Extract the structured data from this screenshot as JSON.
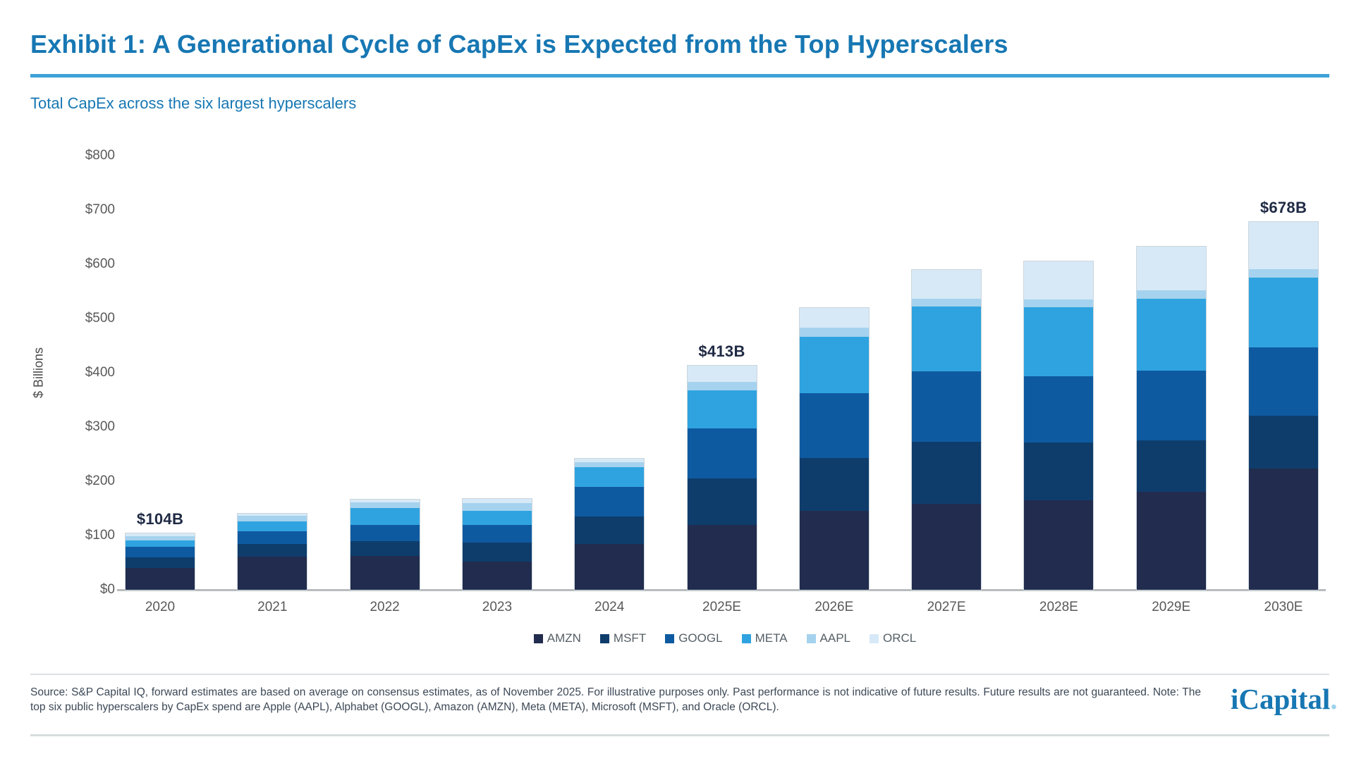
{
  "header": {
    "title": "Exhibit 1: A Generational Cycle of CapEx is Expected from the Top Hyperscalers",
    "subtitle": "Total CapEx across the six largest hyperscalers"
  },
  "chart_data": {
    "type": "bar",
    "stacked": true,
    "title": "Total CapEx across the six largest hyperscalers",
    "ylabel": "$ Billions",
    "ylim": [
      0,
      800
    ],
    "ytick_step": 100,
    "ytick_prefix": "$",
    "grid": false,
    "legend_position": "bottom",
    "categories": [
      "2020",
      "2021",
      "2022",
      "2023",
      "2024",
      "2025E",
      "2026E",
      "2027E",
      "2028E",
      "2029E",
      "2030E"
    ],
    "series": [
      {
        "name": "AMZN",
        "color": "#222c4e",
        "values": [
          40,
          61,
          62,
          52,
          84,
          119,
          145,
          159,
          165,
          180,
          223
        ]
      },
      {
        "name": "MSFT",
        "color": "#0e3d6c",
        "values": [
          20,
          23,
          27,
          35,
          51,
          86,
          98,
          114,
          107,
          95,
          98
        ]
      },
      {
        "name": "GOOGL",
        "color": "#0e5aa0",
        "values": [
          19,
          24,
          30,
          32,
          55,
          93,
          119,
          130,
          122,
          129,
          126
        ]
      },
      {
        "name": "META",
        "color": "#2fa3e0",
        "values": [
          12,
          18,
          32,
          27,
          36,
          70,
          104,
          119,
          127,
          132,
          128
        ]
      },
      {
        "name": "AAPL",
        "color": "#a5d2ee",
        "values": [
          8,
          10,
          10,
          14,
          9,
          15,
          17,
          14,
          14,
          16,
          16
        ]
      },
      {
        "name": "ORCL",
        "color": "#d7e9f7",
        "values": [
          5,
          4,
          5,
          7,
          7,
          30,
          37,
          54,
          70,
          80,
          87
        ]
      }
    ],
    "totals": [
      104,
      140,
      166,
      167,
      242,
      413,
      520,
      590,
      605,
      632,
      678
    ],
    "value_labels": {
      "2020": "$104B",
      "2025E": "$413B",
      "2030E": "$678B"
    }
  },
  "footer": {
    "source": "Source: S&P Capital IQ, forward estimates are based on average on consensus estimates, as of November 2025. For illustrative purposes only. Past performance is not indicative of future results. Future results are not guaranteed. Note: The top six public hyperscalers by CapEx spend are Apple (AAPL), Alphabet (GOOGL), Amazon (AMZN), Meta (META), Microsoft (MSFT), and Oracle (ORCL).",
    "logo_text": "iCapital",
    "logo_dot": "."
  },
  "colors": {
    "title_blue": "#1777b3",
    "rule_blue": "#3ea2d8",
    "axis_gray": "#595959",
    "value_label_navy": "#1f2a44"
  }
}
